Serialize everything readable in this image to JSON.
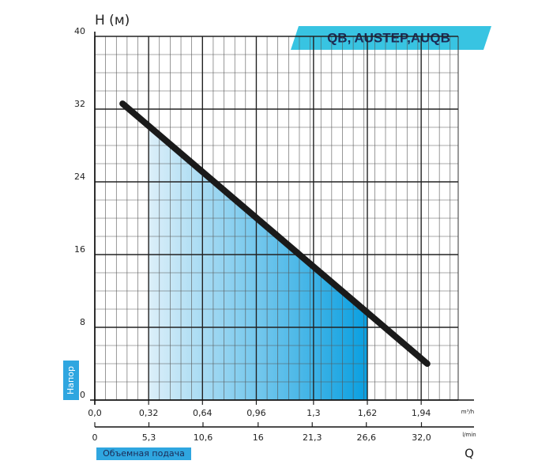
{
  "chart_data": {
    "type": "line",
    "title": "QB, AUSTEP,AUQB",
    "y_label": "H (м)",
    "y_title": "Напор",
    "x_title": "Объемная подача",
    "x_symbol": "Q",
    "x_unit": "m³/h",
    "x2_unit": "l/min",
    "x": [
      0.165,
      1.976
    ],
    "values": [
      32.6,
      4.0
    ],
    "color": "#1a1a1a",
    "operating_range": [
      0.32,
      1.62
    ],
    "xlim": [
      0,
      2.16
    ],
    "xticks": [
      {
        "value": 0,
        "label": "0,0"
      },
      {
        "value": 0.32,
        "label": "0,32"
      },
      {
        "value": 0.64,
        "label": "0,64"
      },
      {
        "value": 0.96,
        "label": "0,96"
      },
      {
        "value": 1.3,
        "label": "1,3"
      },
      {
        "value": 1.62,
        "label": "1,62"
      },
      {
        "value": 1.94,
        "label": "1,94"
      }
    ],
    "x2lim": [
      0,
      35.6
    ],
    "x2ticks": [
      0,
      {
        "value": 5.3,
        "label": "5,3"
      },
      {
        "value": 10.6,
        "label": "10,6"
      },
      16,
      {
        "value": 21.3,
        "label": "21,3"
      },
      {
        "value": 26.6,
        "label": "26,6"
      },
      {
        "value": 32.0,
        "label": "32,0"
      }
    ],
    "ylim": [
      0,
      40
    ],
    "yticks": [
      0,
      8,
      16,
      24,
      32,
      40
    ],
    "grid": true
  }
}
